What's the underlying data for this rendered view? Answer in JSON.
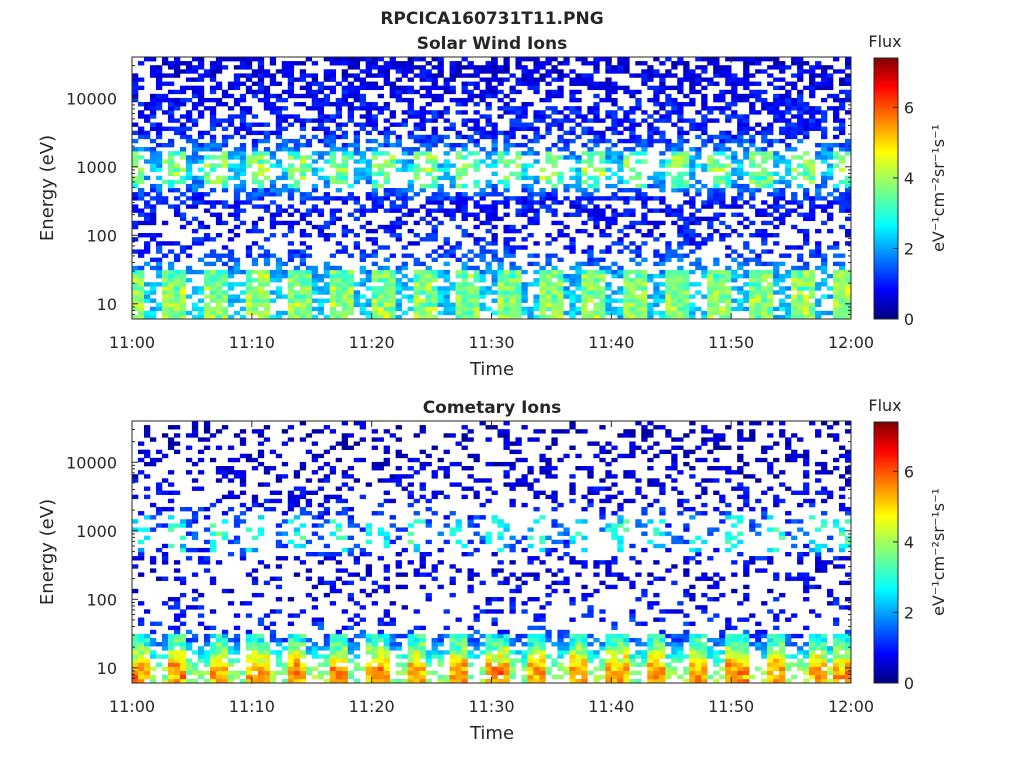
{
  "figure": {
    "title": "RPCICA160731T11.PNG"
  },
  "colormap": "jet",
  "chart_data": [
    {
      "type": "heatmap",
      "title": "Solar Wind Ions",
      "xlabel": "Time",
      "ylabel": "Energy (eV)",
      "x_ticks": [
        "11:00",
        "11:10",
        "11:20",
        "11:30",
        "11:40",
        "11:50",
        "12:00"
      ],
      "xlim": [
        "11:00",
        "12:00"
      ],
      "y_ticks": [
        "10",
        "100",
        "1000",
        "10000"
      ],
      "y_scale": "log",
      "ylim": [
        6,
        40000
      ],
      "colorbar": {
        "label": "Flux",
        "units": "eV⁻¹cm⁻²sr⁻¹s⁻¹",
        "ticks": [
          "0",
          "2",
          "4",
          "6"
        ],
        "range": [
          0,
          7.4
        ]
      },
      "summary_profile": [
        {
          "energy_eV": 10,
          "flux": 2.4
        },
        {
          "energy_eV": 25,
          "flux": 2.2
        },
        {
          "energy_eV": 60,
          "flux": 1.2
        },
        {
          "energy_eV": 100,
          "flux": 1.0
        },
        {
          "energy_eV": 300,
          "flux": 1.0
        },
        {
          "energy_eV": 900,
          "flux": 2.5
        },
        {
          "energy_eV": 1500,
          "flux": 2.0
        },
        {
          "energy_eV": 3000,
          "flux": 1.1
        },
        {
          "energy_eV": 10000,
          "flux": 0.9
        },
        {
          "energy_eV": 30000,
          "flux": 0.7
        }
      ],
      "periodic_peak_minutes": [
        0,
        3.5,
        7,
        10.5,
        14,
        17.5,
        21,
        24.5,
        28,
        31.5,
        35,
        38.5,
        42,
        45.5,
        49,
        52.5,
        56,
        59.5
      ]
    },
    {
      "type": "heatmap",
      "title": "Cometary Ions",
      "xlabel": "Time",
      "ylabel": "Energy (eV)",
      "x_ticks": [
        "11:00",
        "11:10",
        "11:20",
        "11:30",
        "11:40",
        "11:50",
        "12:00"
      ],
      "xlim": [
        "11:00",
        "12:00"
      ],
      "y_ticks": [
        "10",
        "100",
        "1000",
        "10000"
      ],
      "y_scale": "log",
      "ylim": [
        6,
        40000
      ],
      "colorbar": {
        "label": "Flux",
        "units": "eV⁻¹cm⁻²sr⁻¹s⁻¹",
        "ticks": [
          "0",
          "2",
          "4",
          "6"
        ],
        "range": [
          0,
          7.4
        ]
      },
      "summary_profile": [
        {
          "energy_eV": 10,
          "flux": 3.8
        },
        {
          "energy_eV": 25,
          "flux": 1.6
        },
        {
          "energy_eV": 60,
          "flux": 1.0
        },
        {
          "energy_eV": 100,
          "flux": 0.9
        },
        {
          "energy_eV": 300,
          "flux": 0.7
        },
        {
          "energy_eV": 900,
          "flux": 1.6
        },
        {
          "energy_eV": 3000,
          "flux": 0.8
        },
        {
          "energy_eV": 10000,
          "flux": 0.6
        },
        {
          "energy_eV": 30000,
          "flux": 0.5
        }
      ],
      "periodic_peak_minutes": [
        0.5,
        3.8,
        7.2,
        10.5,
        13.8,
        17.2,
        20.5,
        23.8,
        27.2,
        30.5,
        33.8,
        37.2,
        40.5,
        43.8,
        47.2,
        50.5,
        53.8,
        57.2,
        59.5
      ]
    }
  ]
}
